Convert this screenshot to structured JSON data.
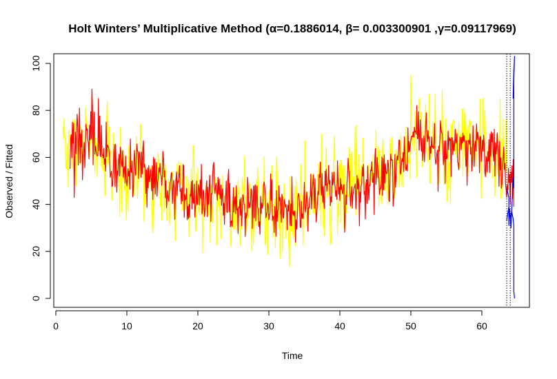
{
  "chart_data": {
    "type": "line",
    "title": "Holt Winters’ Multiplicative Method (α=0.1886014, β= 0.003300901 ,γ=0.09117969)",
    "xlabel": "Time",
    "ylabel": "Observed / Fitted",
    "xlim": [
      0,
      67
    ],
    "ylim": [
      0,
      103
    ],
    "x_ticks": [
      0,
      10,
      20,
      30,
      40,
      50,
      60
    ],
    "y_ticks": [
      0,
      20,
      40,
      60,
      80,
      100
    ],
    "grid": false,
    "legend": "none",
    "frequency": 12,
    "vertical_lines": [
      {
        "x": 63.5,
        "style": "dotted"
      },
      {
        "x": 64.0,
        "style": "dotted"
      }
    ],
    "anchors": {
      "x": [
        1,
        2,
        3,
        4,
        5,
        6,
        7,
        8,
        9,
        10,
        11,
        12,
        13,
        14,
        15,
        16,
        17,
        18,
        19,
        20,
        22,
        24,
        26,
        28,
        30,
        32,
        34,
        36,
        38,
        40,
        42,
        44,
        46,
        48,
        49,
        50,
        51,
        52,
        54,
        56,
        58,
        60,
        62,
        63.5
      ],
      "level": [
        67,
        64,
        66,
        64,
        70,
        65,
        62,
        58,
        56,
        55,
        56,
        54,
        52,
        50,
        49,
        48,
        47,
        46,
        45,
        44,
        43,
        41,
        40,
        38,
        38,
        38,
        38,
        43,
        46,
        46,
        48,
        50,
        52,
        56,
        58,
        66,
        70,
        66,
        64,
        65,
        65,
        64,
        60,
        53
      ]
    },
    "series": [
      {
        "name": "",
        "color": "#FFFF00",
        "x_start": 1,
        "x_end": 63.5,
        "seed": 7,
        "noise": 9,
        "points": [
          [
            1.0,
            73
          ],
          [
            1.5,
            55
          ],
          [
            5.0,
            75
          ],
          [
            9.0,
            35
          ],
          [
            13.7,
            28
          ],
          [
            27.6,
            20
          ],
          [
            32.8,
            21
          ],
          [
            37.4,
            70
          ],
          [
            38.7,
            23
          ],
          [
            50.0,
            95
          ],
          [
            55.6,
            40
          ],
          [
            62.6,
            85
          ],
          [
            63.3,
            50
          ]
        ]
      },
      {
        "name": "",
        "color": "#FF0000",
        "x_start": 2,
        "x_end": 64.5,
        "seed": 13,
        "noise": 6,
        "points": [
          [
            2.3,
            75
          ],
          [
            2.6,
            43
          ],
          [
            3.3,
            81
          ],
          [
            5.1,
            89
          ],
          [
            6.0,
            85
          ],
          [
            30.6,
            35
          ],
          [
            50.8,
            82
          ],
          [
            63.5,
            43
          ],
          [
            64.0,
            40
          ],
          [
            64.5,
            39
          ]
        ]
      },
      {
        "name": "",
        "color": "#0000FF",
        "points": [
          [
            63.5,
            47
          ],
          [
            63.8,
            43
          ],
          [
            63.8,
            31
          ],
          [
            63.9,
            38
          ],
          [
            64.1,
            30
          ],
          [
            64.4,
            51
          ],
          [
            64.5,
            47
          ],
          [
            64.5,
            93
          ],
          [
            64.6,
            103
          ],
          [
            64.5,
            97
          ],
          [
            64.4,
            85
          ]
        ]
      },
      {
        "name": "",
        "color": "#0000FF",
        "points": [
          [
            63.5,
            33
          ],
          [
            63.8,
            39
          ],
          [
            64.0,
            34
          ],
          [
            64.2,
            37
          ],
          [
            64.4,
            34
          ],
          [
            64.5,
            31
          ],
          [
            64.5,
            3
          ],
          [
            64.6,
            0
          ]
        ]
      }
    ]
  }
}
